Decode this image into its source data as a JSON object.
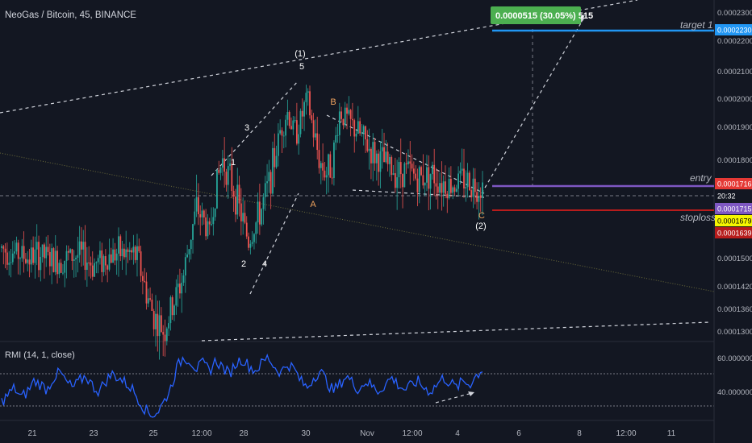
{
  "header": {
    "title": "NeoGas / Bitcoin, 45, BINANCE"
  },
  "indicator": {
    "label": "RMI (14, 1, close)",
    "levels": [
      "60.0000000",
      "40.0000000"
    ]
  },
  "annotations": {
    "measure_box": "0.0000515 (30.05%) 515",
    "target_label": "target 1",
    "entry_label": "entry",
    "stoploss_label": "stoploss",
    "waves": [
      {
        "text": "(1)",
        "color": "#ffffff"
      },
      {
        "text": "5",
        "color": "#ffffff"
      },
      {
        "text": "3",
        "color": "#ffffff"
      },
      {
        "text": "1",
        "color": "#ffffff"
      },
      {
        "text": "2",
        "color": "#ffffff"
      },
      {
        "text": "4",
        "color": "#ffffff"
      },
      {
        "text": "B",
        "color": "#f0a35e"
      },
      {
        "text": "A",
        "color": "#f0a35e"
      },
      {
        "text": "C",
        "color": "#f0a35e"
      },
      {
        "text": "(2)",
        "color": "#ffffff"
      }
    ]
  },
  "price_badges": [
    {
      "text": "0.0001716",
      "bg": "#e53935",
      "fg": "#ffffff"
    },
    {
      "text": "20:32",
      "bg": "#131722",
      "fg": "#ffffff"
    },
    {
      "text": "0.0001715",
      "bg": "#7e57c2",
      "fg": "#ffffff"
    },
    {
      "text": "0.0001679",
      "bg": "#f5f500",
      "fg": "#000000"
    },
    {
      "text": "0.0001639",
      "bg": "#b71c1c",
      "fg": "#ffffff"
    },
    {
      "text": "0.0002230",
      "bg": "#2196f3",
      "fg": "#ffffff"
    }
  ],
  "colors": {
    "background": "#131722",
    "up": "#26a69a",
    "down": "#ef5350",
    "rmi_line": "#2962ff",
    "target_line": "#2196f3",
    "entry_line": "#7e57c2",
    "stop_line": "#b71c1c",
    "measure_box": "#4caf50"
  },
  "chart_data": {
    "type": "candlestick",
    "title": "NeoGas / Bitcoin, 45, BINANCE",
    "y_axis": {
      "ticks": [
        "0.0002300",
        "0.0002200",
        "0.0002100",
        "0.0002000",
        "0.0001900",
        "0.0001800",
        "0.0001500",
        "0.0001420",
        "0.0001360",
        "0.0001300"
      ],
      "ylim": [
        0.000128,
        0.000232
      ]
    },
    "x_axis": {
      "ticks": [
        "21",
        "23",
        "25",
        "12:00",
        "28",
        "30",
        "Nov",
        "12:00",
        "4",
        "6",
        "8",
        "12:00",
        "11"
      ]
    },
    "price_path": [
      0.000153,
      0.000152,
      0.0001515,
      0.000151,
      0.00015,
      0.0001505,
      0.000151,
      0.00015,
      0.000149,
      0.0001495,
      0.00015,
      0.0001505,
      0.000151,
      0.00015,
      0.000148,
      0.000149,
      0.00015,
      0.000151,
      0.0001515,
      0.0001512,
      0.000151,
      0.00015,
      0.000142,
      0.000136,
      0.000132,
      0.00013,
      0.000135,
      0.00014,
      0.000145,
      0.000156,
      0.000165,
      0.000162,
      0.000157,
      0.000172,
      0.00018,
      0.000175,
      0.000169,
      0.000162,
      0.000155,
      0.00016,
      0.000165,
      0.000172,
      0.00018,
      0.00019,
      0.000195,
      0.000188,
      0.000192,
      0.0002,
      0.000188,
      0.000179,
      0.000176,
      0.00018,
      0.000195,
      0.000193,
      0.00019,
      0.000188,
      0.000185,
      0.000182,
      0.00018,
      0.000179,
      0.000177,
      0.000176,
      0.000177,
      0.000176,
      0.000174,
      0.000175,
      0.000176,
      0.000174,
      0.000173,
      0.000172,
      0.000173,
      0.000174,
      0.000173,
      0.000172,
      0.0001716
    ],
    "levels": {
      "target": 0.000223,
      "entry": 0.0001716,
      "current": 0.0001715,
      "stoploss": 0.0001639
    },
    "rmi": {
      "levels": [
        60,
        40
      ],
      "ylim": [
        28,
        72
      ],
      "values": [
        38,
        42,
        46,
        40,
        44,
        50,
        48,
        45,
        52,
        55,
        49,
        46,
        50,
        53,
        47,
        44,
        50,
        54,
        52,
        49,
        46,
        40,
        34,
        30,
        32,
        38,
        46,
        58,
        64,
        62,
        57,
        60,
        56,
        62,
        58,
        54,
        60,
        63,
        59,
        56,
        60,
        64,
        58,
        55,
        60,
        57,
        50,
        46,
        52,
        56,
        50,
        44,
        48,
        53,
        49,
        45,
        50,
        47,
        44,
        48,
        52,
        48,
        45,
        47,
        50,
        46,
        44,
        48,
        52,
        49,
        46,
        50,
        48,
        53,
        57
      ]
    }
  }
}
